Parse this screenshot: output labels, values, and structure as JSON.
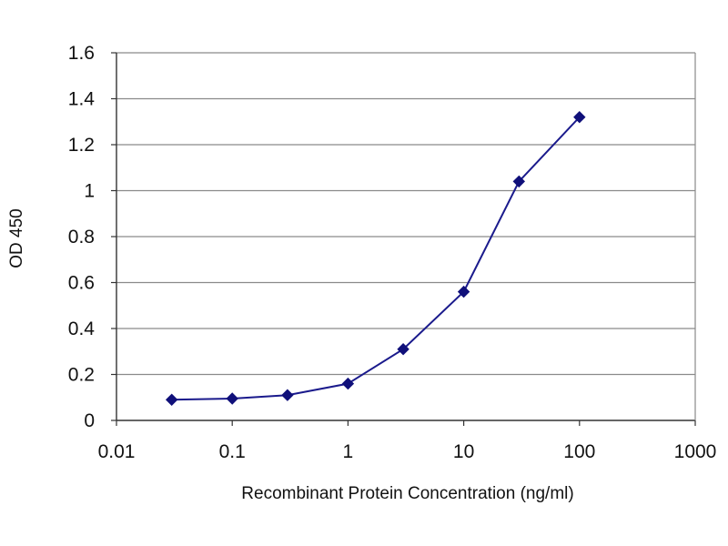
{
  "chart_data": {
    "type": "line",
    "title": "",
    "xlabel": "Recombinant Protein Concentration (ng/ml)",
    "ylabel": "OD 450",
    "xscale": "log",
    "xlim": [
      0.01,
      1000
    ],
    "ylim": [
      0,
      1.6
    ],
    "grid": "horizontal",
    "legend": "none",
    "x_ticks": [
      "0.01",
      "0.1",
      "1",
      "10",
      "100",
      "1000"
    ],
    "y_ticks": [
      "0",
      "0.2",
      "0.4",
      "0.6",
      "0.8",
      "1",
      "1.2",
      "1.4",
      "1.6"
    ],
    "series": [
      {
        "x": [
          0.03,
          0.1,
          0.3,
          1,
          3,
          10,
          30,
          100
        ],
        "y": [
          0.09,
          0.095,
          0.11,
          0.16,
          0.31,
          0.56,
          1.04,
          1.32
        ]
      }
    ],
    "colors": {
      "line": "#1a1a8c",
      "marker": "#10107a",
      "grid": "#8a8a8a",
      "axis": "#333333"
    }
  }
}
